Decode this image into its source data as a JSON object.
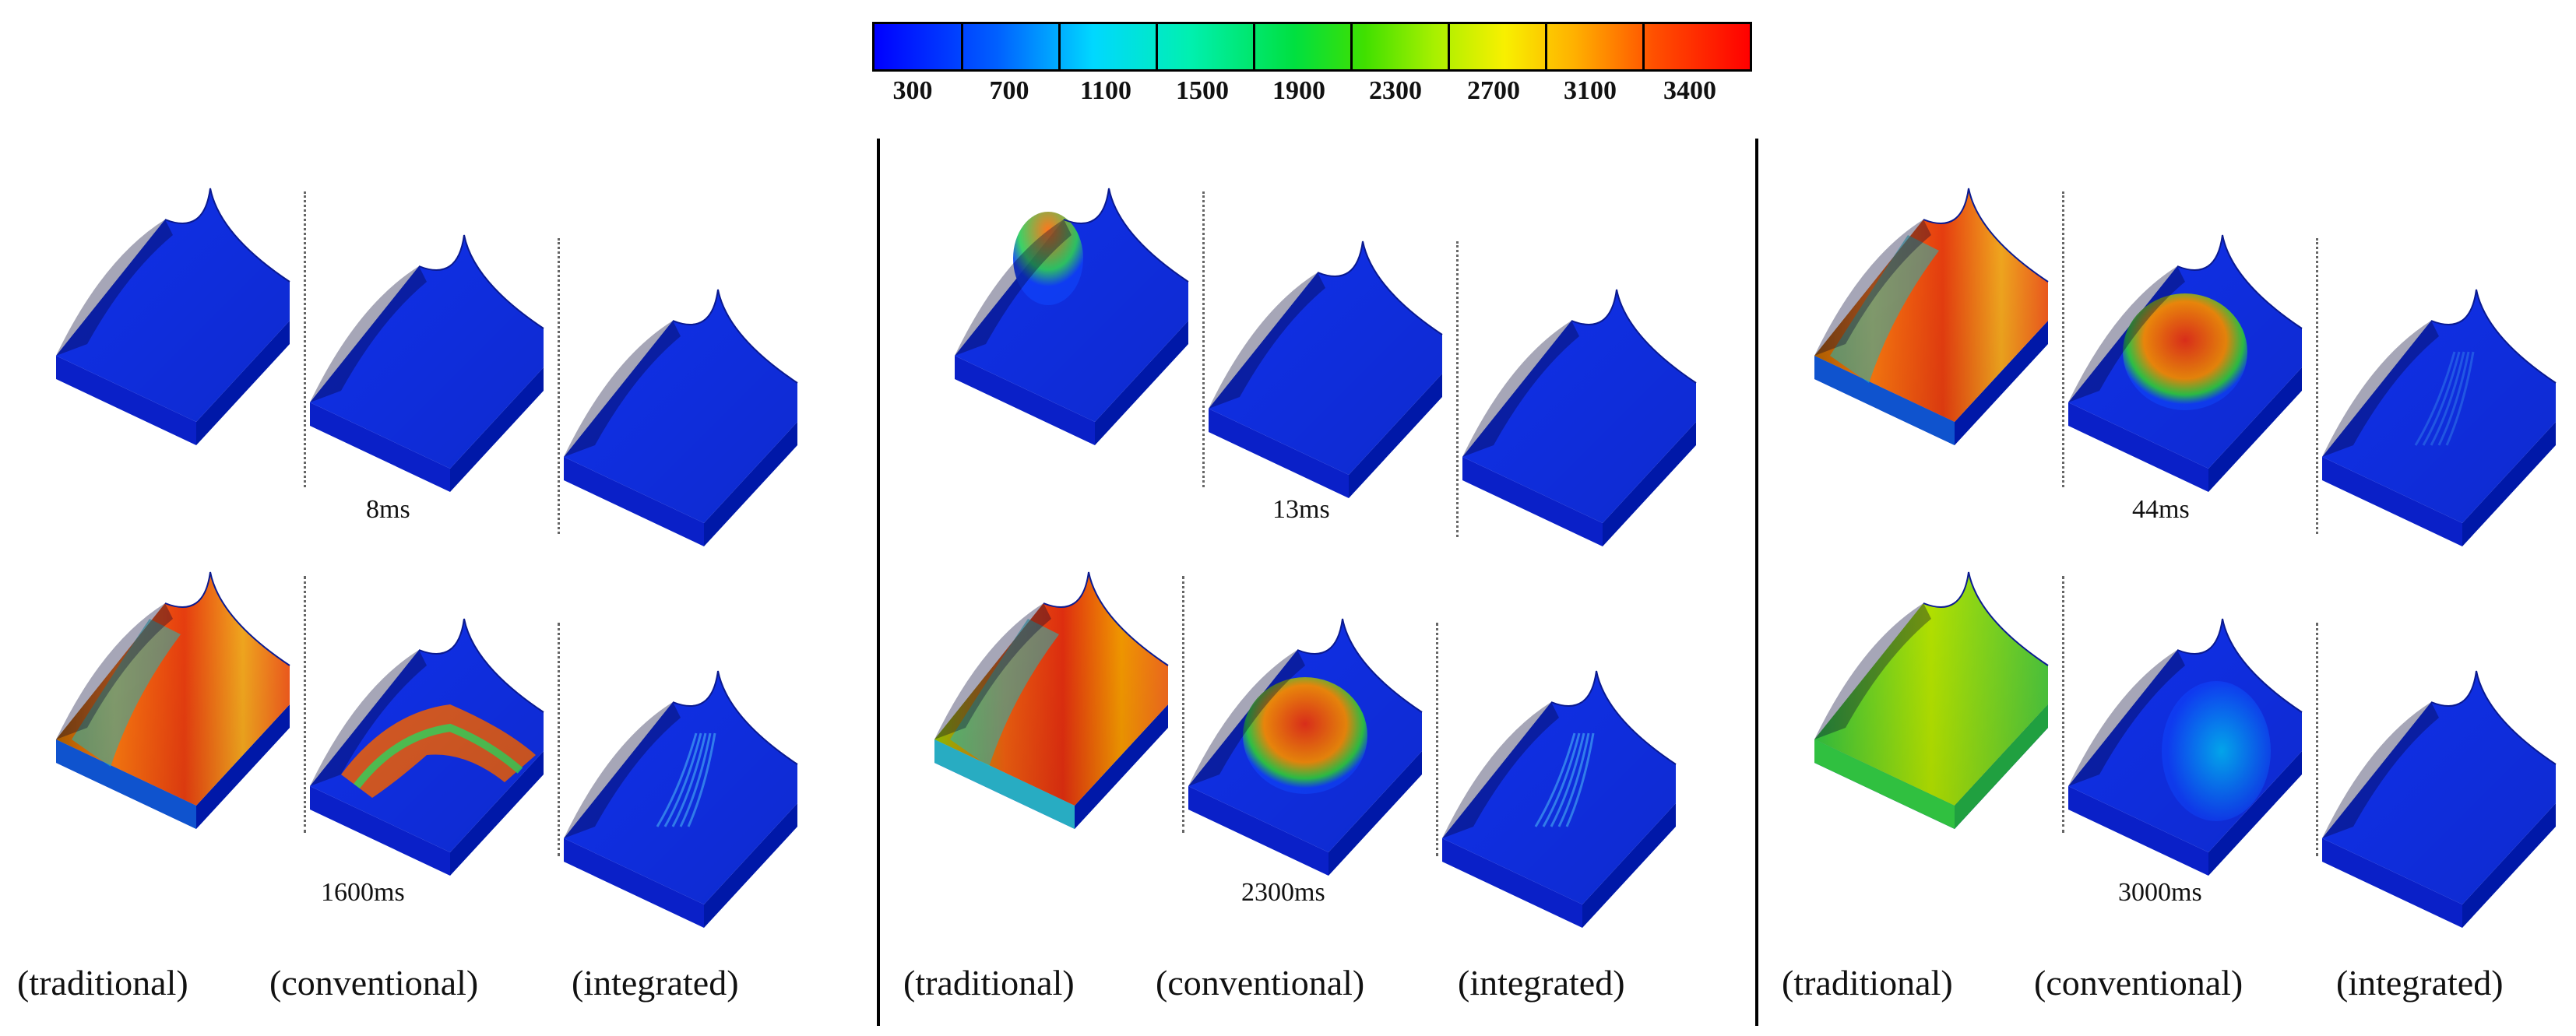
{
  "colorbar": {
    "ticks": [
      "300",
      "700",
      "1100",
      "1500",
      "1900",
      "2300",
      "2700",
      "3100",
      "3400"
    ],
    "colors": [
      "#0000ff",
      "#00d8ff",
      "#00e040",
      "#f8f000",
      "#ff0000"
    ]
  },
  "groups": [
    {
      "top_time": "8ms",
      "bottom_time": "1600ms"
    },
    {
      "top_time": "13ms",
      "bottom_time": "2300ms"
    },
    {
      "top_time": "44ms",
      "bottom_time": "3000ms"
    }
  ],
  "column_labels": [
    "(traditional)",
    "(conventional)",
    "(integrated)"
  ]
}
